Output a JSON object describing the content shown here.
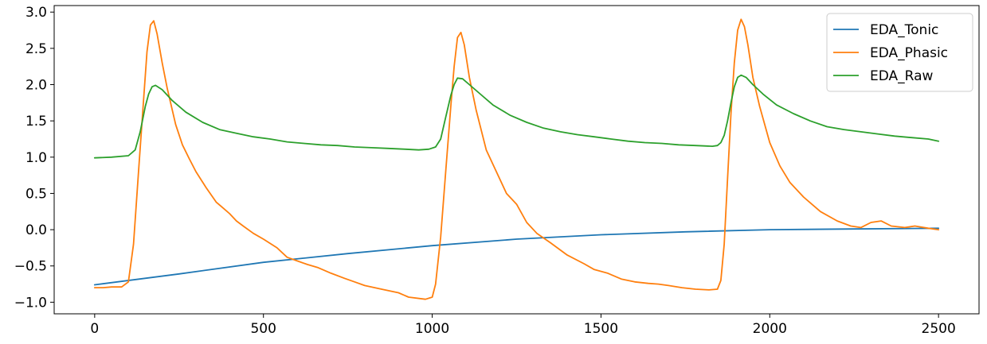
{
  "chart_data": {
    "type": "line",
    "title": "",
    "xlabel": "",
    "ylabel": "",
    "xlim": [
      -120,
      2620
    ],
    "ylim": [
      -1.16,
      3.09
    ],
    "xticks": [
      0,
      500,
      1000,
      1500,
      2000,
      2500
    ],
    "xtick_labels": [
      "0",
      "500",
      "1000",
      "1500",
      "2000",
      "2500"
    ],
    "yticks": [
      -1.0,
      -0.5,
      0.0,
      0.5,
      1.0,
      1.5,
      2.0,
      2.5,
      3.0
    ],
    "ytick_labels": [
      "−1.0",
      "−0.5",
      "0.0",
      "0.5",
      "1.0",
      "1.5",
      "2.0",
      "2.5",
      "3.0"
    ],
    "grid": false,
    "legend_position": "top-right",
    "series": [
      {
        "name": "EDA_Tonic",
        "color": "#1f77b4",
        "x": [
          0,
          250,
          500,
          750,
          1000,
          1250,
          1500,
          1750,
          2000,
          2250,
          2500
        ],
        "y": [
          -0.76,
          -0.61,
          -0.45,
          -0.33,
          -0.22,
          -0.13,
          -0.07,
          -0.03,
          0.0,
          0.01,
          0.02
        ]
      },
      {
        "name": "EDA_Phasic",
        "color": "#ff7f0e",
        "x": [
          0,
          25,
          50,
          80,
          100,
          115,
          130,
          145,
          155,
          165,
          175,
          185,
          200,
          215,
          240,
          260,
          280,
          300,
          330,
          360,
          380,
          400,
          420,
          440,
          470,
          500,
          540,
          570,
          600,
          630,
          660,
          700,
          740,
          770,
          800,
          850,
          900,
          930,
          980,
          1000,
          1010,
          1025,
          1040,
          1055,
          1065,
          1075,
          1085,
          1095,
          1110,
          1130,
          1160,
          1190,
          1220,
          1250,
          1280,
          1310,
          1350,
          1400,
          1450,
          1480,
          1520,
          1560,
          1600,
          1640,
          1670,
          1700,
          1740,
          1780,
          1820,
          1845,
          1855,
          1865,
          1875,
          1885,
          1895,
          1905,
          1915,
          1925,
          1935,
          1950,
          1970,
          2000,
          2030,
          2060,
          2100,
          2150,
          2200,
          2240,
          2270,
          2300,
          2330,
          2360,
          2400,
          2430,
          2470,
          2500
        ],
        "y": [
          -0.8,
          -0.8,
          -0.79,
          -0.79,
          -0.72,
          -0.2,
          0.8,
          1.8,
          2.45,
          2.82,
          2.88,
          2.7,
          2.3,
          1.95,
          1.45,
          1.17,
          0.98,
          0.8,
          0.58,
          0.38,
          0.3,
          0.22,
          0.12,
          0.05,
          -0.05,
          -0.13,
          -0.25,
          -0.38,
          -0.43,
          -0.48,
          -0.52,
          -0.6,
          -0.67,
          -0.72,
          -0.77,
          -0.82,
          -0.87,
          -0.93,
          -0.96,
          -0.93,
          -0.75,
          -0.1,
          0.8,
          1.7,
          2.25,
          2.65,
          2.72,
          2.55,
          2.1,
          1.65,
          1.1,
          0.8,
          0.5,
          0.35,
          0.1,
          -0.05,
          -0.18,
          -0.35,
          -0.47,
          -0.55,
          -0.6,
          -0.68,
          -0.72,
          -0.74,
          -0.75,
          -0.77,
          -0.8,
          -0.82,
          -0.83,
          -0.82,
          -0.7,
          -0.2,
          0.7,
          1.6,
          2.3,
          2.75,
          2.9,
          2.8,
          2.55,
          2.1,
          1.7,
          1.2,
          0.88,
          0.65,
          0.45,
          0.25,
          0.12,
          0.05,
          0.03,
          0.1,
          0.12,
          0.05,
          0.03,
          0.05,
          0.02,
          0.0
        ]
      },
      {
        "name": "EDA_Raw",
        "color": "#2ca02c",
        "x": [
          0,
          50,
          100,
          120,
          135,
          150,
          160,
          170,
          180,
          200,
          230,
          270,
          320,
          370,
          420,
          470,
          520,
          570,
          620,
          670,
          720,
          770,
          820,
          870,
          920,
          960,
          990,
          1010,
          1025,
          1040,
          1055,
          1065,
          1075,
          1090,
          1110,
          1140,
          1180,
          1230,
          1280,
          1330,
          1380,
          1430,
          1480,
          1530,
          1580,
          1630,
          1680,
          1730,
          1780,
          1830,
          1845,
          1855,
          1865,
          1875,
          1885,
          1895,
          1905,
          1915,
          1930,
          1950,
          1980,
          2020,
          2070,
          2120,
          2170,
          2220,
          2270,
          2320,
          2370,
          2420,
          2470,
          2500
        ],
        "y": [
          0.99,
          1.0,
          1.02,
          1.1,
          1.35,
          1.7,
          1.87,
          1.97,
          1.99,
          1.93,
          1.78,
          1.62,
          1.48,
          1.38,
          1.33,
          1.28,
          1.25,
          1.21,
          1.19,
          1.17,
          1.16,
          1.14,
          1.13,
          1.12,
          1.11,
          1.1,
          1.11,
          1.14,
          1.25,
          1.55,
          1.85,
          2.0,
          2.09,
          2.08,
          2.0,
          1.88,
          1.72,
          1.58,
          1.48,
          1.4,
          1.35,
          1.31,
          1.28,
          1.25,
          1.22,
          1.2,
          1.19,
          1.17,
          1.16,
          1.15,
          1.16,
          1.2,
          1.3,
          1.5,
          1.75,
          1.97,
          2.1,
          2.13,
          2.1,
          2.0,
          1.87,
          1.72,
          1.6,
          1.5,
          1.42,
          1.38,
          1.35,
          1.32,
          1.29,
          1.27,
          1.25,
          1.22
        ]
      }
    ]
  }
}
